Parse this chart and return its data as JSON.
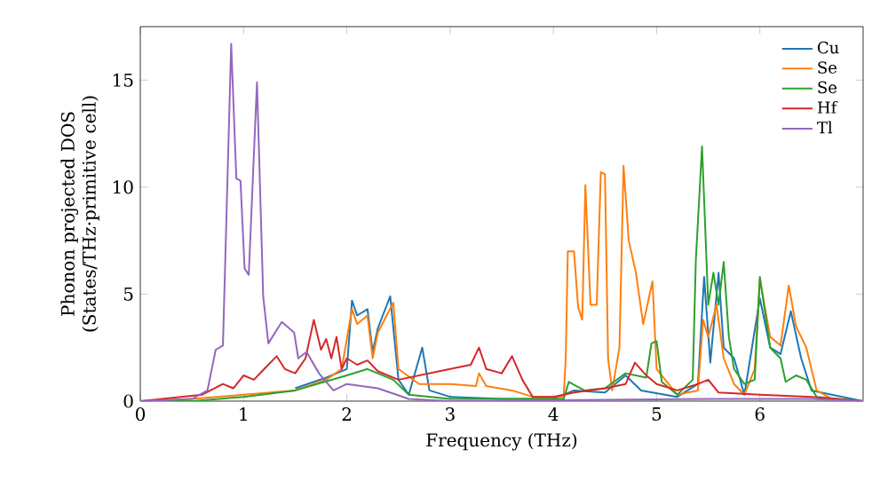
{
  "chart_data": {
    "type": "line",
    "xlabel": "Frequency (THz)",
    "ylabel": "Phonon projected DOS\n(States/THz·primitive cell)",
    "xlim": [
      0,
      7
    ],
    "ylim": [
      0,
      17.5
    ],
    "xticks": [
      0,
      1,
      2,
      3,
      4,
      5,
      6
    ],
    "yticks": [
      0,
      5,
      10,
      15
    ],
    "legend": "top right",
    "series": [
      {
        "name": "Cu",
        "color": "#1f77b4",
        "x": [
          1.5,
          1.8,
          2.0,
          2.05,
          2.1,
          2.2,
          2.25,
          2.3,
          2.42,
          2.5,
          2.6,
          2.73,
          2.8,
          3.0,
          3.5,
          4.0,
          4.2,
          4.5,
          4.7,
          4.85,
          5.2,
          5.4,
          5.46,
          5.52,
          5.6,
          5.65,
          5.75,
          5.85,
          6.0,
          6.1,
          6.2,
          6.3,
          6.4,
          6.5,
          6.7,
          7.0
        ],
        "values": [
          0.6,
          1.1,
          1.5,
          4.7,
          4.0,
          4.3,
          2.3,
          3.4,
          4.9,
          1.0,
          0.3,
          2.5,
          0.5,
          0.2,
          0.1,
          0.1,
          0.5,
          0.4,
          1.2,
          0.5,
          0.2,
          0.8,
          5.8,
          1.8,
          6.0,
          2.5,
          2.0,
          0.3,
          4.8,
          2.5,
          2.2,
          4.2,
          2.0,
          0.5,
          null,
          0
        ]
      },
      {
        "name": "Se",
        "color": "#ff7f0e",
        "x": [
          0,
          0.5,
          1.0,
          1.5,
          1.8,
          1.95,
          2.05,
          2.1,
          2.2,
          2.25,
          2.3,
          2.45,
          2.5,
          2.7,
          3.0,
          3.25,
          3.28,
          3.35,
          3.6,
          3.8,
          4.1,
          4.12,
          4.14,
          4.2,
          4.24,
          4.28,
          4.31,
          4.36,
          4.42,
          4.46,
          4.5,
          4.53,
          4.57,
          4.64,
          4.68,
          4.73,
          4.8,
          4.87,
          4.96,
          5.0,
          5.2,
          5.4,
          5.45,
          5.5,
          5.58,
          5.65,
          5.75,
          5.85,
          5.95,
          6.0,
          6.1,
          6.2,
          6.28,
          6.35,
          6.45,
          6.55,
          6.7,
          7.0
        ],
        "values": [
          0,
          0.1,
          0.3,
          0.5,
          1.0,
          1.5,
          4.3,
          3.6,
          4.0,
          2.0,
          3.2,
          4.6,
          1.5,
          0.8,
          0.8,
          0.7,
          1.3,
          0.7,
          0.5,
          0.2,
          0.2,
          2.0,
          7.0,
          7.0,
          4.4,
          3.8,
          10.1,
          4.5,
          4.5,
          10.7,
          10.6,
          2.0,
          0.5,
          2.5,
          11.0,
          7.5,
          6.0,
          3.6,
          5.6,
          1.5,
          0.3,
          0.5,
          3.8,
          3.0,
          4.5,
          2.0,
          0.8,
          0.3,
          1.5,
          5.7,
          3.0,
          2.6,
          5.4,
          3.5,
          2.5,
          0.5,
          0.1,
          0
        ]
      },
      {
        "name": "Se",
        "color": "#2ca02c",
        "x": [
          0,
          0.5,
          1.0,
          1.5,
          2.0,
          2.2,
          2.45,
          2.6,
          3.0,
          4.1,
          4.15,
          4.3,
          4.5,
          4.7,
          4.9,
          4.95,
          5.0,
          5.05,
          5.2,
          5.35,
          5.38,
          5.44,
          5.5,
          5.55,
          5.6,
          5.65,
          5.7,
          5.75,
          5.85,
          5.95,
          6.0,
          6.1,
          6.2,
          6.25,
          6.35,
          6.45,
          6.55,
          7.0
        ],
        "values": [
          0,
          0,
          0.2,
          0.5,
          1.2,
          1.5,
          1.0,
          0.3,
          0.1,
          0.1,
          0.9,
          0.5,
          0.6,
          1.3,
          1.1,
          2.7,
          2.8,
          0.9,
          0.3,
          1.0,
          6.6,
          11.9,
          4.5,
          6.0,
          4.5,
          6.5,
          3.0,
          1.5,
          0.8,
          1.0,
          5.8,
          2.5,
          2.0,
          0.9,
          1.2,
          1.0,
          0.2,
          0
        ]
      },
      {
        "name": "Hf",
        "color": "#d62728",
        "x": [
          0,
          0.6,
          0.8,
          0.9,
          1.0,
          1.1,
          1.2,
          1.32,
          1.4,
          1.5,
          1.6,
          1.68,
          1.75,
          1.8,
          1.85,
          1.9,
          1.95,
          2.0,
          2.1,
          2.2,
          2.3,
          2.5,
          3.0,
          3.2,
          3.28,
          3.35,
          3.5,
          3.6,
          3.7,
          3.8,
          4.0,
          4.2,
          4.5,
          4.7,
          4.79,
          4.9,
          5.0,
          5.2,
          5.4,
          5.5,
          5.6,
          6.0,
          6.5,
          7.0
        ],
        "values": [
          0,
          0.3,
          0.8,
          0.6,
          1.2,
          1.0,
          1.5,
          2.1,
          1.5,
          1.3,
          2.0,
          3.8,
          2.4,
          2.9,
          2.0,
          3.0,
          1.5,
          2.0,
          1.7,
          1.9,
          1.4,
          1.0,
          1.5,
          1.7,
          2.5,
          1.5,
          1.3,
          2.1,
          1.0,
          0.2,
          0.2,
          0.4,
          0.6,
          0.8,
          1.8,
          1.2,
          0.8,
          0.5,
          0.8,
          1.0,
          0.4,
          0.3,
          0.2,
          0
        ]
      },
      {
        "name": "Tl",
        "color": "#9467bd",
        "x": [
          0,
          0.5,
          0.65,
          0.73,
          0.8,
          0.88,
          0.93,
          0.97,
          1.01,
          1.05,
          1.13,
          1.19,
          1.24,
          1.37,
          1.49,
          1.53,
          1.61,
          1.73,
          1.87,
          2.0,
          2.3,
          2.6,
          3.0,
          5.5,
          6.5,
          7.0
        ],
        "values": [
          0,
          0.1,
          0.5,
          2.4,
          2.6,
          16.7,
          10.4,
          10.3,
          6.2,
          5.9,
          14.9,
          4.9,
          2.7,
          3.7,
          3.2,
          2.0,
          2.3,
          1.3,
          0.5,
          0.8,
          0.6,
          0.1,
          0,
          0.1,
          0.1,
          0
        ]
      }
    ]
  }
}
